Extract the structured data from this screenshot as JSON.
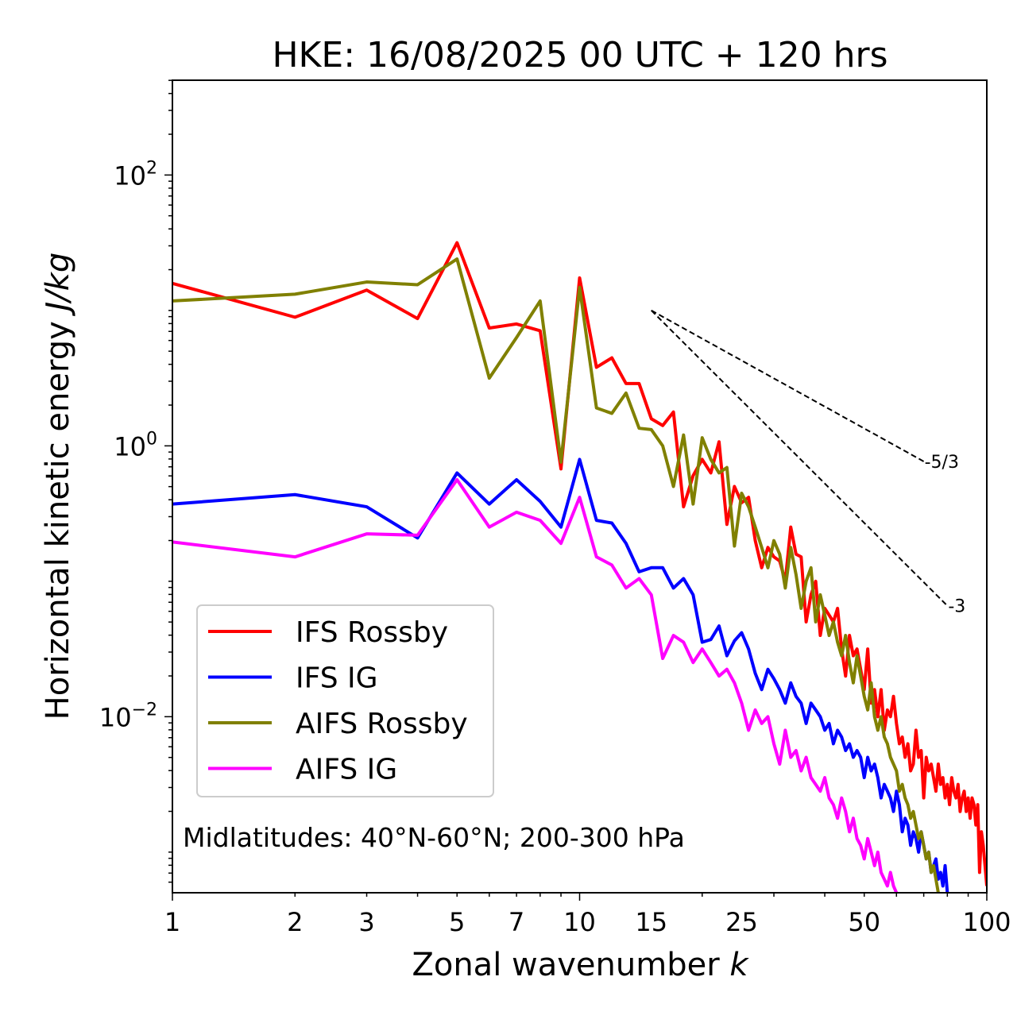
{
  "chart_data": {
    "type": "line",
    "title": "HKE: 16/08/2025 00 UTC + 120 hrs",
    "xlabel_main": "Zonal wavenumber ",
    "xlabel_var": "k",
    "ylabel_main": "Horizontal kinetic energy ",
    "ylabel_unit": "J/kg",
    "xscale": "log",
    "yscale": "log",
    "xlim": [
      1,
      100
    ],
    "ylim_log10": [
      -3.3,
      2.7
    ],
    "x_ticks": [
      {
        "value": 1,
        "label": "1"
      },
      {
        "value": 2,
        "label": "2"
      },
      {
        "value": 3,
        "label": "3"
      },
      {
        "value": 5,
        "label": "5"
      },
      {
        "value": 7,
        "label": "7"
      },
      {
        "value": 10,
        "label": "10"
      },
      {
        "value": 15,
        "label": "15"
      },
      {
        "value": 25,
        "label": "25"
      },
      {
        "value": 50,
        "label": "50"
      },
      {
        "value": 100,
        "label": "100"
      }
    ],
    "y_ticks": [
      {
        "exp": 2,
        "base": "10",
        "sup": "2"
      },
      {
        "exp": 0,
        "base": "10",
        "sup": "0"
      },
      {
        "exp": -2,
        "base": "10",
        "sup": "−2"
      }
    ],
    "annotation": "Midlatitudes: 40°N-60°N; 200-300 hPa",
    "legend_position": "lower-left",
    "reference_slopes": [
      {
        "label": "-5/3",
        "slope": -1.6667,
        "k0": 15,
        "logE0": 1.0,
        "k1": 70
      },
      {
        "label": "-3",
        "slope": -3,
        "k0": 15,
        "logE0": 1.0,
        "k1": 80
      }
    ],
    "series": [
      {
        "name": "IFS Rossby",
        "color": "#ff0000",
        "log10_values": [
          1.2,
          0.95,
          1.15,
          0.94,
          1.5,
          0.87,
          0.9,
          0.85,
          -0.17,
          1.24,
          0.58,
          0.65,
          0.46,
          0.46,
          0.2,
          0.15,
          0.25,
          -0.45,
          -0.22,
          -0.1,
          -0.2,
          0.03,
          -0.58,
          -0.3,
          -0.42,
          -0.38,
          -0.7,
          -0.9,
          -0.75,
          -0.82,
          -0.85,
          -1.0,
          -0.6,
          -0.8,
          -0.82,
          -1.3,
          -1.1,
          -1.0,
          -1.4,
          -1.2,
          -1.25,
          -1.3,
          -1.2,
          -1.5,
          -1.7,
          -1.4,
          -1.55,
          -1.5,
          -1.65,
          -1.8,
          -1.5,
          -1.9,
          -1.8,
          -2.0,
          -1.8,
          -2.1,
          -1.95,
          -2.0,
          -1.85,
          -2.05,
          -2.2,
          -2.15,
          -2.3,
          -2.2,
          -2.4,
          -2.35,
          -2.1,
          -2.3,
          -2.25,
          -2.6,
          -2.3,
          -2.4,
          -2.35,
          -2.45,
          -2.55,
          -2.35,
          -2.5,
          -2.45,
          -2.6,
          -2.5,
          -2.65,
          -2.45,
          -2.55,
          -2.6,
          -2.5,
          -2.7,
          -2.6,
          -2.55,
          -2.7,
          -2.6,
          -2.75,
          -2.6,
          -2.65,
          -2.8,
          -2.65,
          -3.15,
          -2.85,
          -2.95,
          -3.1,
          -3.25
        ]
      },
      {
        "name": "IFS IG",
        "color": "#0000ff",
        "log10_values": [
          -0.43,
          -0.36,
          -0.45,
          -0.68,
          -0.2,
          -0.43,
          -0.25,
          -0.41,
          -0.6,
          -0.1,
          -0.55,
          -0.57,
          -0.72,
          -0.93,
          -0.9,
          -0.9,
          -1.05,
          -0.98,
          -1.1,
          -1.45,
          -1.43,
          -1.33,
          -1.55,
          -1.44,
          -1.38,
          -1.5,
          -1.68,
          -1.8,
          -1.65,
          -1.72,
          -1.8,
          -1.9,
          -1.75,
          -1.85,
          -1.9,
          -2.05,
          -1.9,
          -1.95,
          -2.0,
          -2.1,
          -2.05,
          -2.2,
          -2.1,
          -2.15,
          -2.25,
          -2.2,
          -2.3,
          -2.25,
          -2.3,
          -2.45,
          -2.3,
          -2.4,
          -2.35,
          -2.45,
          -2.6,
          -2.5,
          -2.55,
          -2.6,
          -2.7,
          -2.55,
          -2.65,
          -2.85,
          -2.75,
          -2.8,
          -2.95,
          -2.85,
          -2.9,
          -3.0,
          -2.85,
          -2.95,
          -3.05,
          -3.0,
          -3.15,
          -3.1,
          -3.05,
          -3.2,
          -3.15,
          -3.25,
          -3.1,
          -3.3
        ]
      },
      {
        "name": "AIFS Rossby",
        "color": "#808000",
        "log10_values": [
          1.07,
          1.12,
          1.21,
          1.19,
          1.38,
          0.5,
          0.8,
          1.07,
          -0.12,
          1.17,
          0.28,
          0.24,
          0.39,
          0.13,
          0.12,
          0.0,
          -0.3,
          0.08,
          -0.43,
          0.06,
          -0.1,
          -0.2,
          -0.16,
          -0.74,
          -0.35,
          -0.45,
          -0.6,
          -0.75,
          -0.9,
          -0.7,
          -0.8,
          -1.05,
          -0.75,
          -0.95,
          -1.2,
          -1.0,
          -0.9,
          -1.3,
          -1.1,
          -1.25,
          -1.4,
          -1.3,
          -1.45,
          -1.55,
          -1.4,
          -1.6,
          -1.75,
          -1.55,
          -1.7,
          -1.85,
          -1.95,
          -1.75,
          -2.0,
          -2.1,
          -2.0,
          -2.15,
          -2.2,
          -2.3,
          -2.35,
          -2.4,
          -2.55,
          -2.5,
          -2.6,
          -2.65,
          -2.75,
          -2.7,
          -2.8,
          -2.9,
          -2.85,
          -2.95,
          -3.05,
          -3.0,
          -3.15,
          -3.1,
          -3.2,
          -3.3
        ]
      },
      {
        "name": "AIFS IG",
        "color": "#ff00ff",
        "log10_values": [
          -0.71,
          -0.82,
          -0.65,
          -0.66,
          -0.25,
          -0.6,
          -0.49,
          -0.55,
          -0.72,
          -0.38,
          -0.82,
          -0.88,
          -1.05,
          -0.98,
          -1.1,
          -1.57,
          -1.4,
          -1.45,
          -1.6,
          -1.5,
          -1.6,
          -1.7,
          -1.65,
          -1.75,
          -1.9,
          -2.1,
          -1.95,
          -2.05,
          -2.0,
          -2.2,
          -2.35,
          -2.1,
          -2.3,
          -2.25,
          -2.4,
          -2.3,
          -2.45,
          -2.5,
          -2.55,
          -2.45,
          -2.6,
          -2.65,
          -2.75,
          -2.6,
          -2.7,
          -2.85,
          -2.75,
          -2.9,
          -2.95,
          -3.05,
          -2.9,
          -3.0,
          -3.1,
          -3.0,
          -3.15,
          -3.2,
          -3.25,
          -3.15,
          -3.25,
          -3.3
        ]
      }
    ]
  }
}
